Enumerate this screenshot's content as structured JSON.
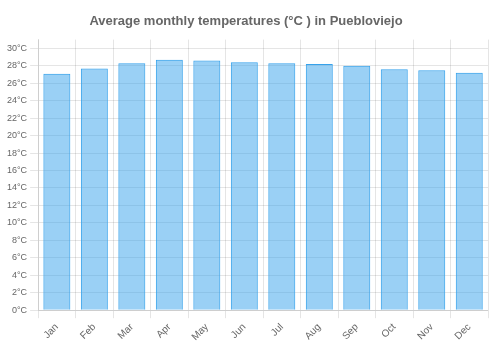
{
  "chart_data": {
    "type": "bar",
    "title": "Average monthly temperatures (°C ) in Puebloviejo",
    "categories": [
      "Jan",
      "Feb",
      "Mar",
      "Apr",
      "May",
      "Jun",
      "Jul",
      "Aug",
      "Sep",
      "Oct",
      "Nov",
      "Dec"
    ],
    "values": [
      27.1,
      27.7,
      28.3,
      28.7,
      28.6,
      28.4,
      28.3,
      28.2,
      28.0,
      27.6,
      27.5,
      27.2
    ],
    "ylim": [
      0,
      31
    ],
    "yticks": [
      {
        "value": 0,
        "label": "0°C"
      },
      {
        "value": 2,
        "label": "2°C"
      },
      {
        "value": 4,
        "label": "4°C"
      },
      {
        "value": 6,
        "label": "6°C"
      },
      {
        "value": 8,
        "label": "8°C"
      },
      {
        "value": 10,
        "label": "10°C"
      },
      {
        "value": 12,
        "label": "12°C"
      },
      {
        "value": 14,
        "label": "14°C"
      },
      {
        "value": 16,
        "label": "16°C"
      },
      {
        "value": 18,
        "label": "18°C"
      },
      {
        "value": 20,
        "label": "20°C"
      },
      {
        "value": 22,
        "label": "22°C"
      },
      {
        "value": 24,
        "label": "24°C"
      },
      {
        "value": 26,
        "label": "26°C"
      },
      {
        "value": 28,
        "label": "28°C"
      },
      {
        "value": 30,
        "label": "30°C"
      }
    ],
    "grid": true
  }
}
